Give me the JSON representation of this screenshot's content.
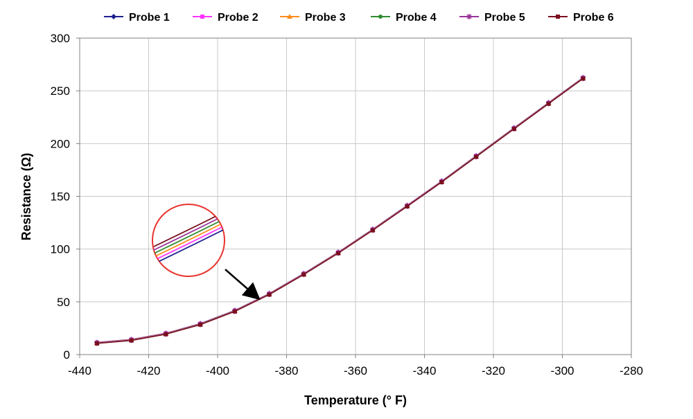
{
  "chart_data": {
    "type": "line",
    "title": "",
    "xlabel": "Temperature (° F)",
    "ylabel": "Resistance (Ω)",
    "xlim": [
      -440,
      -280
    ],
    "ylim": [
      0,
      300
    ],
    "xticks": [
      -440,
      -420,
      -400,
      -380,
      -360,
      -340,
      -320,
      -300,
      -280
    ],
    "yticks": [
      0,
      50,
      100,
      150,
      200,
      250,
      300
    ],
    "xtick_labels": [
      "-440",
      "-420",
      "-400",
      "-380",
      "-360",
      "-340",
      "-320",
      "-300",
      "-280"
    ],
    "ytick_labels": [
      "0",
      "50",
      "100",
      "150",
      "200",
      "250",
      "300"
    ],
    "grid": true,
    "legend_position": "top",
    "x": [
      -435,
      -425,
      -415,
      -405,
      -395,
      -385,
      -375,
      -365,
      -355,
      -345,
      -335,
      -325,
      -314,
      -304,
      -294
    ],
    "series": [
      {
        "name": "Probe 1",
        "color": "#1f1f8f",
        "marker": "diamond",
        "values": [
          11.6,
          14.4,
          20.3,
          29.4,
          41.9,
          57.9,
          76.9,
          97.1,
          118.8,
          141.5,
          164.5,
          188.5,
          214.9,
          238.8,
          262.6
        ]
      },
      {
        "name": "Probe 2",
        "color": "#ff33ff",
        "marker": "square",
        "values": [
          11.4,
          14.2,
          20.1,
          29.2,
          41.7,
          57.7,
          76.7,
          96.9,
          118.6,
          141.3,
          164.3,
          188.3,
          214.7,
          238.6,
          262.4
        ]
      },
      {
        "name": "Probe 3",
        "color": "#ff8c1a",
        "marker": "triangle",
        "values": [
          11.2,
          14.0,
          19.9,
          29.0,
          41.5,
          57.5,
          76.5,
          96.7,
          118.4,
          141.1,
          164.1,
          188.1,
          214.5,
          238.4,
          262.2
        ]
      },
      {
        "name": "Probe 4",
        "color": "#2e8b2e",
        "marker": "circle",
        "values": [
          11.0,
          13.8,
          19.7,
          28.8,
          41.3,
          57.3,
          76.3,
          96.5,
          118.2,
          140.9,
          163.9,
          187.9,
          214.3,
          238.2,
          262.0
        ]
      },
      {
        "name": "Probe 5",
        "color": "#993399",
        "marker": "star",
        "values": [
          10.8,
          13.6,
          19.5,
          28.6,
          41.1,
          57.1,
          76.1,
          96.3,
          118.0,
          140.7,
          163.7,
          187.7,
          214.1,
          238.0,
          261.8
        ]
      },
      {
        "name": "Probe 6",
        "color": "#7a0f1f",
        "marker": "square",
        "values": [
          10.6,
          13.4,
          19.3,
          28.4,
          40.9,
          56.9,
          75.9,
          96.1,
          117.8,
          140.5,
          163.5,
          187.5,
          213.9,
          237.8,
          261.6
        ]
      }
    ],
    "annotation": {
      "type": "zoom-inset",
      "circle_color": "#e8332e",
      "arrow_color": "#000000",
      "arrow_target": {
        "x": -389,
        "y": 52
      }
    }
  }
}
